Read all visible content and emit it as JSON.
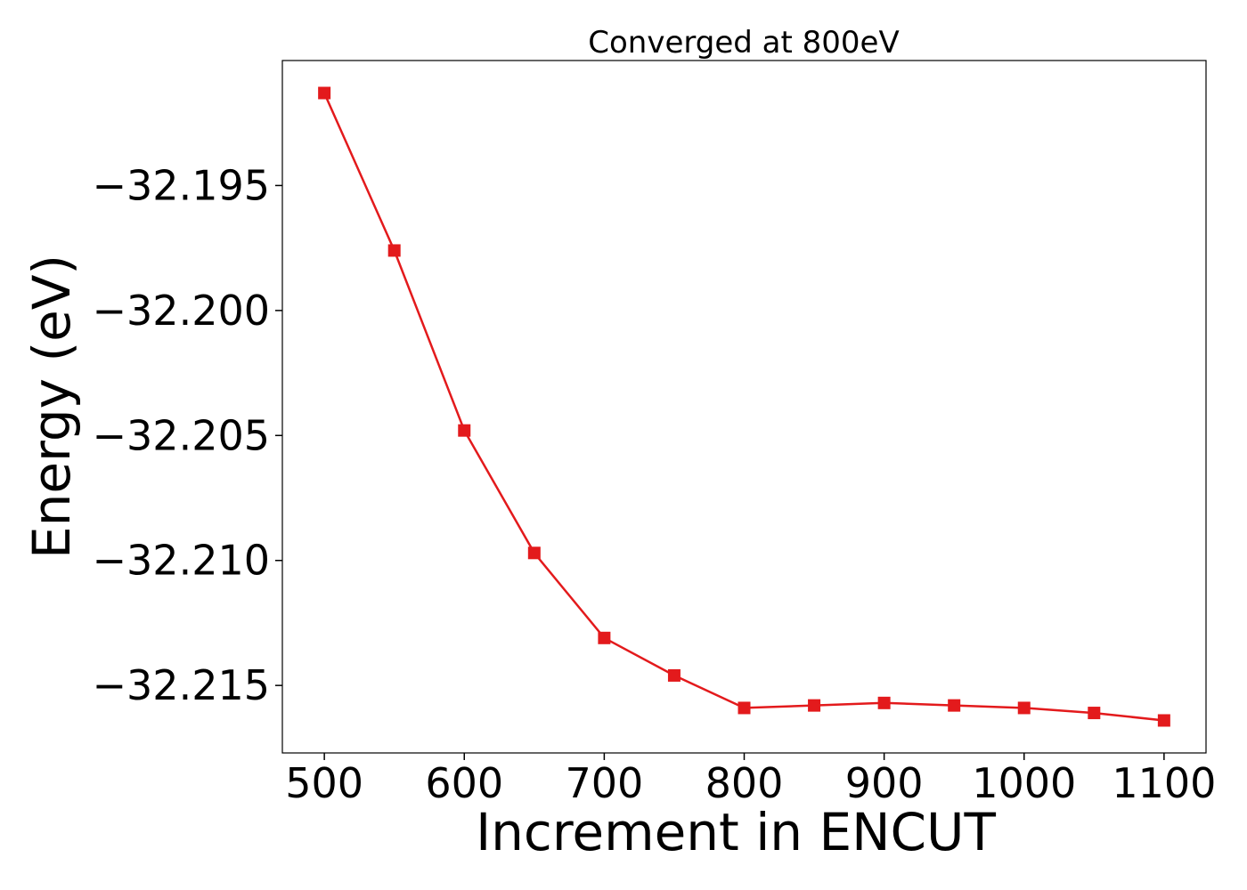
{
  "chart_data": {
    "type": "line",
    "title": "Converged at 800eV",
    "xlabel": "Increment in ENCUT",
    "ylabel": "Energy (eV)",
    "x": [
      500,
      550,
      600,
      650,
      700,
      750,
      800,
      850,
      900,
      950,
      1000,
      1050,
      1100
    ],
    "series": [
      {
        "values": [
          -32.1913,
          -32.1976,
          -32.2048,
          -32.2097,
          -32.2131,
          -32.2146,
          -32.2159,
          -32.2158,
          -32.2157,
          -32.2158,
          -32.2159,
          -32.2161,
          -32.2164
        ],
        "color": "#e31a1c",
        "marker": "square"
      }
    ],
    "xlim": [
      470,
      1130
    ],
    "ylim": [
      -32.2177,
      -32.19
    ],
    "xticks": [
      500,
      600,
      700,
      800,
      900,
      1000,
      1100
    ],
    "xtick_labels": [
      "500",
      "600",
      "700",
      "800",
      "900",
      "1000",
      "1100"
    ],
    "yticks": [
      -32.195,
      -32.2,
      -32.205,
      -32.21,
      -32.215
    ],
    "ytick_labels": [
      "−32.195",
      "−32.200",
      "−32.205",
      "−32.210",
      "−32.215"
    ],
    "grid": false,
    "legend": false
  }
}
